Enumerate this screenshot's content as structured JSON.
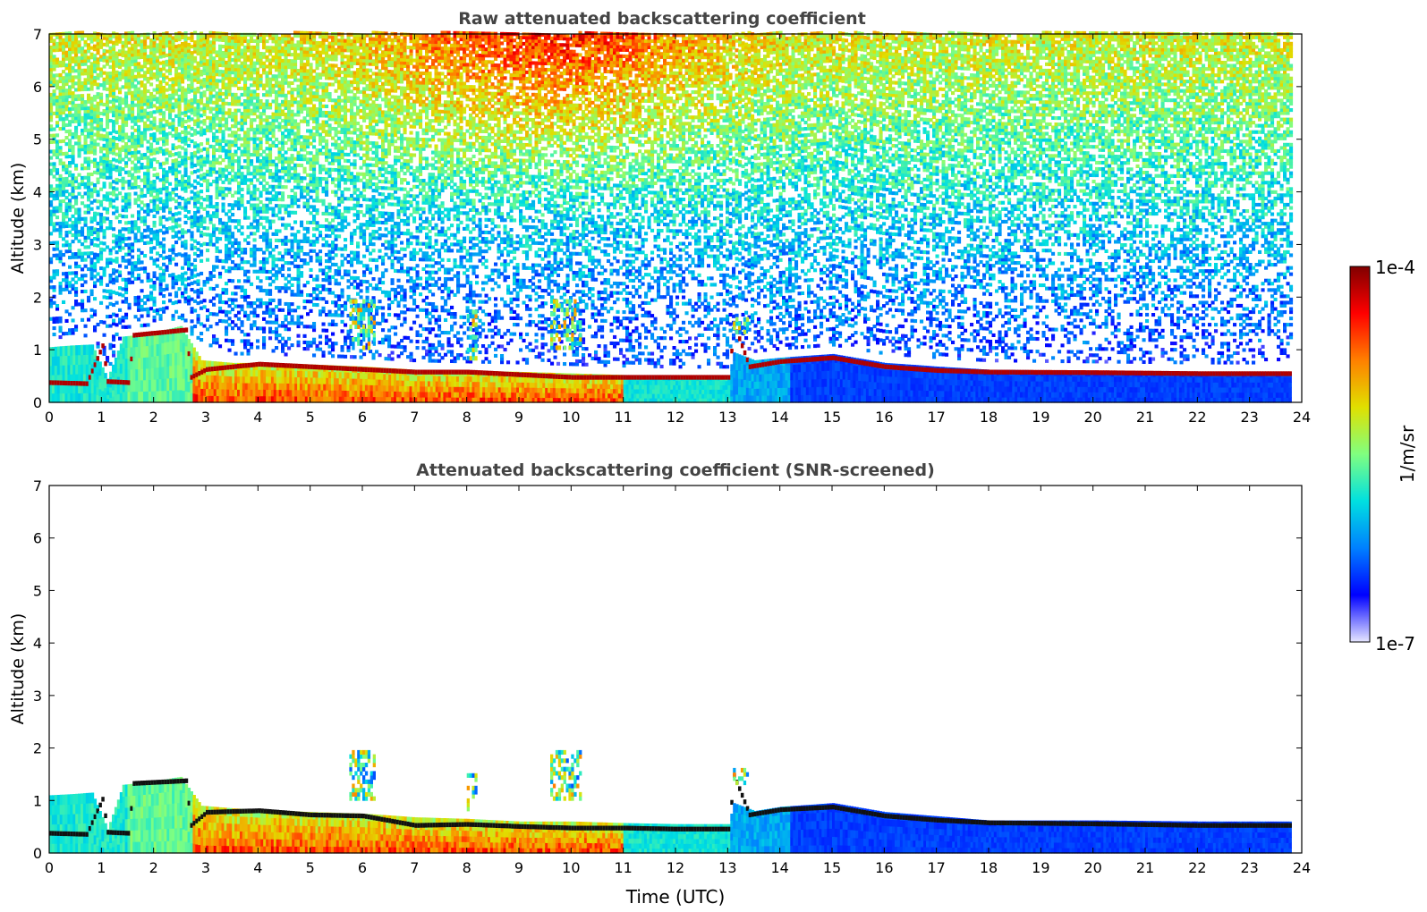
{
  "chart_data": [
    {
      "type": "heatmap",
      "title": "Raw attenuated backscattering coefficient",
      "xlabel": "",
      "ylabel": "Altitude (km)",
      "xlim": [
        0,
        24
      ],
      "ylim": [
        0,
        7
      ],
      "xticks": [
        "0",
        "1",
        "2",
        "3",
        "4",
        "5",
        "6",
        "7",
        "8",
        "9",
        "10",
        "11",
        "12",
        "13",
        "14",
        "15",
        "16",
        "17",
        "18",
        "19",
        "20",
        "21",
        "22",
        "23",
        "24"
      ],
      "yticks": [
        "0",
        "1",
        "2",
        "3",
        "4",
        "5",
        "6",
        "7"
      ],
      "data_extent_hours": [
        0,
        23.8
      ],
      "noise_field": true,
      "layer_top_km": [
        [
          0,
          1.05
        ],
        [
          0.4,
          1.08
        ],
        [
          0.8,
          1.1
        ],
        [
          1.1,
          0.45
        ],
        [
          1.4,
          1.25
        ],
        [
          1.9,
          1.3
        ],
        [
          2.5,
          1.45
        ],
        [
          2.9,
          0.8
        ],
        [
          3.5,
          0.75
        ],
        [
          4.0,
          0.75
        ],
        [
          5.0,
          0.72
        ],
        [
          6.0,
          0.68
        ],
        [
          7.0,
          0.62
        ],
        [
          8.0,
          0.6
        ],
        [
          9.0,
          0.58
        ],
        [
          10.0,
          0.55
        ],
        [
          11.0,
          0.52
        ],
        [
          12.0,
          0.5
        ],
        [
          13.0,
          0.5
        ],
        [
          13.1,
          0.95
        ],
        [
          13.5,
          0.8
        ],
        [
          14.0,
          0.85
        ],
        [
          15.0,
          0.92
        ],
        [
          16.0,
          0.75
        ],
        [
          17.0,
          0.68
        ],
        [
          18.0,
          0.62
        ],
        [
          20.0,
          0.6
        ],
        [
          22.0,
          0.58
        ],
        [
          23.8,
          0.58
        ]
      ],
      "cloud_top_line_km": [
        [
          0,
          0.35
        ],
        [
          0.7,
          0.33
        ],
        [
          1.0,
          1.05
        ],
        [
          1.1,
          0.37
        ],
        [
          1.5,
          0.35
        ],
        [
          1.6,
          1.25
        ],
        [
          2.6,
          1.35
        ],
        [
          2.7,
          0.45
        ],
        [
          3.0,
          0.6
        ],
        [
          4.0,
          0.7
        ],
        [
          5.0,
          0.65
        ],
        [
          6.0,
          0.6
        ],
        [
          7.0,
          0.55
        ],
        [
          8.0,
          0.55
        ],
        [
          9.0,
          0.5
        ],
        [
          10.0,
          0.45
        ],
        [
          11.0,
          0.45
        ],
        [
          12.0,
          0.45
        ],
        [
          13.0,
          0.45
        ],
        [
          13.1,
          1.45
        ],
        [
          13.4,
          0.65
        ],
        [
          14.0,
          0.75
        ],
        [
          15.0,
          0.82
        ],
        [
          16.0,
          0.65
        ],
        [
          17.0,
          0.58
        ],
        [
          18.0,
          0.55
        ],
        [
          20.0,
          0.54
        ],
        [
          22.0,
          0.52
        ],
        [
          23.8,
          0.52
        ]
      ],
      "elevated_features": [
        {
          "x": [
            5.75,
            6.2
          ],
          "y": [
            1.0,
            1.9
          ]
        },
        {
          "x": [
            9.6,
            10.2
          ],
          "y": [
            1.0,
            1.9
          ]
        },
        {
          "x": [
            8.0,
            8.2
          ],
          "y": [
            0.8,
            1.7
          ]
        },
        {
          "x": [
            13.1,
            13.4
          ],
          "y": [
            1.3,
            1.55
          ]
        }
      ]
    },
    {
      "type": "heatmap",
      "title": "Attenuated backscattering coefficient (SNR-screened)",
      "xlabel": "Time (UTC)",
      "ylabel": "Altitude (km)",
      "xlim": [
        0,
        24
      ],
      "ylim": [
        0,
        7
      ],
      "xticks": [
        "0",
        "1",
        "2",
        "3",
        "4",
        "5",
        "6",
        "7",
        "8",
        "9",
        "10",
        "11",
        "12",
        "13",
        "14",
        "15",
        "16",
        "17",
        "18",
        "19",
        "20",
        "21",
        "22",
        "23",
        "24"
      ],
      "yticks": [
        "0",
        "1",
        "2",
        "3",
        "4",
        "5",
        "6",
        "7"
      ],
      "data_extent_hours": [
        0,
        23.8
      ],
      "noise_field": false,
      "layer_top_km": [
        [
          0,
          1.1
        ],
        [
          0.4,
          1.12
        ],
        [
          0.8,
          1.15
        ],
        [
          1.1,
          0.45
        ],
        [
          1.4,
          1.3
        ],
        [
          1.9,
          1.35
        ],
        [
          2.5,
          1.45
        ],
        [
          2.9,
          0.9
        ],
        [
          3.5,
          0.85
        ],
        [
          4.0,
          0.82
        ],
        [
          5.0,
          0.78
        ],
        [
          6.0,
          0.75
        ],
        [
          7.0,
          0.68
        ],
        [
          8.0,
          0.65
        ],
        [
          9.0,
          0.6
        ],
        [
          10.0,
          0.6
        ],
        [
          11.0,
          0.57
        ],
        [
          12.0,
          0.55
        ],
        [
          13.0,
          0.55
        ],
        [
          13.1,
          0.95
        ],
        [
          13.5,
          0.8
        ],
        [
          14.0,
          0.88
        ],
        [
          15.0,
          0.95
        ],
        [
          16.0,
          0.78
        ],
        [
          17.0,
          0.7
        ],
        [
          18.0,
          0.62
        ],
        [
          20.0,
          0.62
        ],
        [
          22.0,
          0.6
        ],
        [
          23.8,
          0.6
        ]
      ],
      "cloud_top_line_km": [
        [
          0,
          0.35
        ],
        [
          0.7,
          0.33
        ],
        [
          1.0,
          1.0
        ],
        [
          1.1,
          0.37
        ],
        [
          1.5,
          0.35
        ],
        [
          1.6,
          1.3
        ],
        [
          2.6,
          1.35
        ],
        [
          2.7,
          0.5
        ],
        [
          3.0,
          0.75
        ],
        [
          4.0,
          0.78
        ],
        [
          5.0,
          0.7
        ],
        [
          6.0,
          0.68
        ],
        [
          7.0,
          0.5
        ],
        [
          8.0,
          0.52
        ],
        [
          9.0,
          0.48
        ],
        [
          10.0,
          0.45
        ],
        [
          11.0,
          0.45
        ],
        [
          12.0,
          0.43
        ],
        [
          13.0,
          0.43
        ],
        [
          13.1,
          1.45
        ],
        [
          13.4,
          0.7
        ],
        [
          14.0,
          0.8
        ],
        [
          15.0,
          0.85
        ],
        [
          16.0,
          0.68
        ],
        [
          17.0,
          0.6
        ],
        [
          18.0,
          0.55
        ],
        [
          20.0,
          0.53
        ],
        [
          22.0,
          0.5
        ],
        [
          23.8,
          0.5
        ]
      ],
      "elevated_features": [
        {
          "x": [
            5.75,
            6.2
          ],
          "y": [
            1.0,
            1.9
          ]
        },
        {
          "x": [
            9.6,
            10.2
          ],
          "y": [
            1.0,
            1.9
          ]
        },
        {
          "x": [
            8.0,
            8.2
          ],
          "y": [
            0.8,
            1.5
          ]
        },
        {
          "x": [
            13.1,
            13.4
          ],
          "y": [
            1.3,
            1.55
          ]
        }
      ]
    }
  ],
  "colorbar": {
    "label": "1/m/sr",
    "max_label": "1e-4",
    "min_label": "1e-7",
    "scale": "log",
    "colors": [
      "#e6e6ff",
      "#0000ff",
      "#0080ff",
      "#00e0e0",
      "#80ff80",
      "#e0e000",
      "#ff8000",
      "#ff0000",
      "#800000"
    ]
  }
}
